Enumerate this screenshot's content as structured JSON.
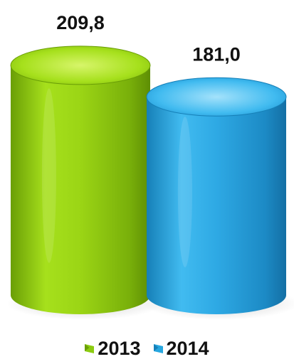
{
  "chart_data": {
    "type": "bar",
    "style": "3d-cylinder",
    "categories": [
      "2013",
      "2014"
    ],
    "values": [
      209.8,
      181.0
    ],
    "data_labels": [
      "209,8",
      "181,0"
    ],
    "title": "",
    "xlabel": "",
    "ylabel": "",
    "grid": false,
    "legend_position": "bottom",
    "series": [
      {
        "name": "2013",
        "value": 209.8,
        "label": "209,8",
        "color": "#8ccc10"
      },
      {
        "name": "2014",
        "value": 181.0,
        "label": "181,0",
        "color": "#26a7e0"
      }
    ]
  },
  "legend": {
    "items": [
      {
        "label": "2013",
        "color": "#8ccc10"
      },
      {
        "label": "2014",
        "color": "#26a7e0"
      }
    ]
  }
}
